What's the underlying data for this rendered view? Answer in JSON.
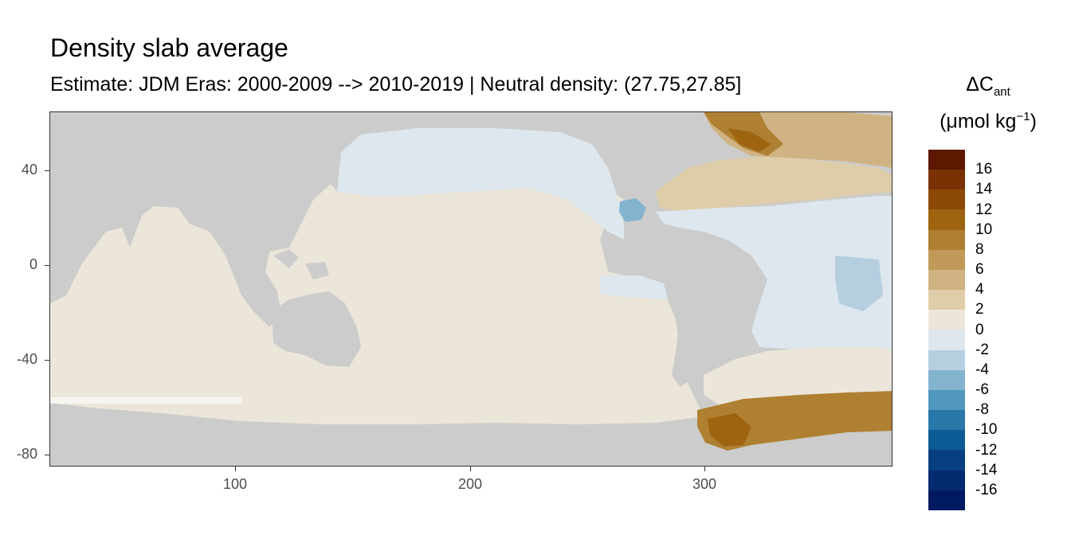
{
  "title": "Density slab average",
  "subtitle": "Estimate: JDM Eras: 2000-2009 --> 2010-2019 | Neutral density: (27.75,27.85]",
  "legend": {
    "title_prefix": "ΔC",
    "title_sub": "ant",
    "unit_open": "(μmol kg",
    "unit_sup": "−1",
    "unit_close": ")",
    "bins": [
      {
        "color": "#5c1800"
      },
      {
        "color": "#7a3204"
      },
      {
        "color": "#8c4a06"
      },
      {
        "color": "#9e6410"
      },
      {
        "color": "#af8032"
      },
      {
        "color": "#c19a5a"
      },
      {
        "color": "#d0b383"
      },
      {
        "color": "#dfcdaa"
      },
      {
        "color": "#ece6da"
      },
      {
        "color": "#dde7ed"
      },
      {
        "color": "#b5cfe1"
      },
      {
        "color": "#84b3d0"
      },
      {
        "color": "#5197be"
      },
      {
        "color": "#2a78aa"
      },
      {
        "color": "#0e5c95"
      },
      {
        "color": "#073f80"
      },
      {
        "color": "#042a70"
      },
      {
        "color": "#001960"
      }
    ],
    "labels": [
      "16",
      "14",
      "12",
      "10",
      "8",
      "6",
      "4",
      "2",
      "0",
      "-2",
      "-4",
      "-6",
      "-8",
      "-10",
      "-12",
      "-14",
      "-16"
    ]
  },
  "axes": {
    "x_ticks": [
      100,
      200,
      300
    ],
    "y_ticks": [
      40,
      0,
      -40,
      -80
    ],
    "x_range": [
      20,
      381
    ],
    "y_range": [
      -85,
      65
    ]
  },
  "colors": {
    "land": "#cccccc",
    "ocean_zero": "#ece6da",
    "light_negative": "#dde7ed",
    "negative": "#b5cfe1",
    "positive_small": "#d0b383",
    "positive_mid": "#af8032",
    "positive_high": "#8c4a06"
  }
}
